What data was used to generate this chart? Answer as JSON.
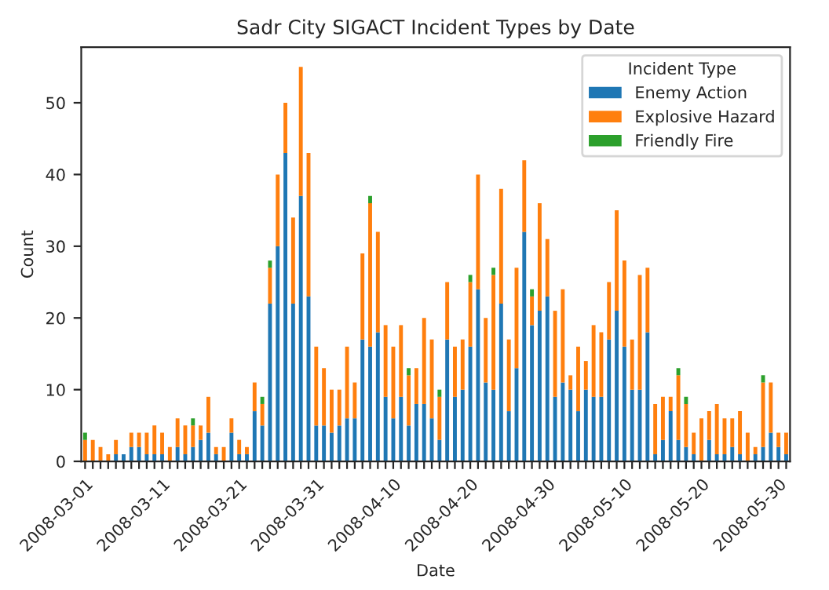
{
  "chart_data": {
    "type": "bar",
    "stacked": true,
    "title": "Sadr City SIGACT Incident Types by Date",
    "xlabel": "Date",
    "ylabel": "Count",
    "legend_title": "Incident Type",
    "legend": "top right",
    "grid": false,
    "categories": [
      "2008-03-01",
      null,
      null,
      null,
      null,
      null,
      null,
      null,
      null,
      null,
      "2008-03-11",
      null,
      null,
      null,
      null,
      null,
      null,
      null,
      null,
      null,
      "2008-03-21",
      null,
      null,
      null,
      null,
      null,
      null,
      null,
      null,
      null,
      "2008-03-31",
      null,
      null,
      null,
      null,
      null,
      null,
      null,
      null,
      null,
      "2008-04-10",
      null,
      null,
      null,
      null,
      null,
      null,
      null,
      null,
      null,
      "2008-04-20",
      null,
      null,
      null,
      null,
      null,
      null,
      null,
      null,
      null,
      "2008-04-30",
      null,
      null,
      null,
      null,
      null,
      null,
      null,
      null,
      null,
      "2008-05-10",
      null,
      null,
      null,
      null,
      null,
      null,
      null,
      null,
      null,
      "2008-05-20",
      null,
      null,
      null,
      null,
      null,
      null,
      null,
      null,
      null,
      "2008-05-30",
      null
    ],
    "series": [
      {
        "name": "Enemy Action",
        "color": "#1f77b4",
        "values": [
          0,
          0,
          0,
          0,
          1,
          1,
          2,
          2,
          1,
          1,
          1,
          0,
          2,
          1,
          2,
          3,
          4,
          1,
          0,
          4,
          1,
          1,
          7,
          5,
          22,
          30,
          43,
          22,
          37,
          23,
          5,
          5,
          4,
          5,
          6,
          6,
          17,
          16,
          18,
          9,
          6,
          9,
          5,
          8,
          8,
          6,
          3,
          17,
          9,
          10,
          16,
          24,
          11,
          10,
          22,
          7,
          13,
          32,
          19,
          21,
          23,
          9,
          11,
          10,
          7,
          10,
          9,
          9,
          17,
          21,
          16,
          10,
          10,
          18,
          1,
          3,
          7,
          3,
          2,
          1,
          0,
          3,
          1,
          1,
          2,
          1,
          0,
          1,
          2,
          4,
          2,
          1
        ]
      },
      {
        "name": "Explosive Hazard",
        "color": "#ff7f0e",
        "values": [
          3,
          3,
          2,
          1,
          2,
          0,
          2,
          2,
          3,
          4,
          3,
          2,
          4,
          4,
          3,
          2,
          5,
          1,
          2,
          2,
          2,
          1,
          4,
          3,
          5,
          10,
          7,
          12,
          18,
          20,
          11,
          8,
          6,
          5,
          10,
          5,
          12,
          20,
          14,
          10,
          10,
          10,
          7,
          5,
          12,
          11,
          6,
          8,
          7,
          7,
          9,
          16,
          9,
          16,
          16,
          10,
          14,
          10,
          4,
          15,
          8,
          12,
          13,
          2,
          9,
          4,
          10,
          9,
          8,
          14,
          12,
          7,
          16,
          9,
          7,
          6,
          2,
          9,
          6,
          3,
          6,
          4,
          7,
          5,
          4,
          6,
          4,
          1,
          9,
          7,
          2,
          3
        ]
      },
      {
        "name": "Friendly Fire",
        "color": "#2ca02c",
        "values": [
          1,
          0,
          0,
          0,
          0,
          0,
          0,
          0,
          0,
          0,
          0,
          0,
          0,
          0,
          1,
          0,
          0,
          0,
          0,
          0,
          0,
          0,
          0,
          1,
          1,
          0,
          0,
          0,
          0,
          0,
          0,
          0,
          0,
          0,
          0,
          0,
          0,
          1,
          0,
          0,
          0,
          0,
          1,
          0,
          0,
          0,
          1,
          0,
          0,
          0,
          1,
          0,
          0,
          1,
          0,
          0,
          0,
          0,
          1,
          0,
          0,
          0,
          0,
          0,
          0,
          0,
          0,
          0,
          0,
          0,
          0,
          0,
          0,
          0,
          0,
          0,
          0,
          1,
          1,
          0,
          0,
          0,
          0,
          0,
          0,
          0,
          0,
          0,
          1,
          0,
          0,
          0
        ]
      }
    ],
    "ylim": [
      0,
      57.75
    ],
    "yticks": [
      0,
      10,
      20,
      30,
      40,
      50
    ]
  }
}
